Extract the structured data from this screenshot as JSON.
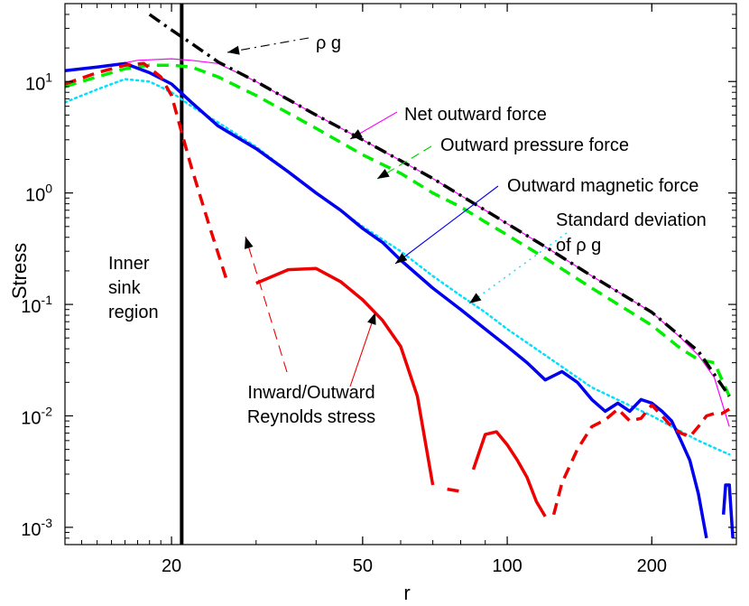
{
  "chart_data": {
    "type": "line",
    "xscale": "log",
    "yscale": "log",
    "xlabel": "r",
    "ylabel": "Stress",
    "xlim": [
      12,
      300
    ],
    "ylim": [
      0.0007,
      50
    ],
    "xticks": [
      {
        "value": 20,
        "label": "20"
      },
      {
        "value": 50,
        "label": "50"
      },
      {
        "value": 100,
        "label": "100"
      },
      {
        "value": 200,
        "label": "200"
      }
    ],
    "yticks": [
      {
        "value": 10,
        "base": "10",
        "exp": "1"
      },
      {
        "value": 1,
        "base": "10",
        "exp": "0"
      },
      {
        "value": 0.1,
        "base": "10",
        "exp": "-1"
      },
      {
        "value": 0.01,
        "base": "10",
        "exp": "-2"
      },
      {
        "value": 0.001,
        "base": "10",
        "exp": "-3"
      }
    ],
    "sink_boundary_r": 21,
    "series": [
      {
        "name": "rho g",
        "color": "#000000",
        "style": "dashdot",
        "width": 3.5,
        "x": [
          18,
          20,
          22,
          25,
          30,
          40,
          50,
          60,
          70,
          80,
          90,
          100,
          120,
          150,
          200,
          250,
          290
        ],
        "y": [
          40,
          29,
          22,
          15,
          10,
          5.0,
          3.0,
          1.95,
          1.35,
          0.95,
          0.7,
          0.53,
          0.33,
          0.18,
          0.085,
          0.038,
          0.015
        ]
      },
      {
        "name": "Net outward force",
        "color": "#ff00ff",
        "style": "solid",
        "width": 1.2,
        "x": [
          12,
          15,
          17,
          20,
          22,
          25,
          30,
          40,
          50,
          60,
          70,
          80,
          90,
          100,
          120,
          150,
          200,
          230,
          250,
          270,
          290
        ],
        "y": [
          12.5,
          14,
          15.5,
          16,
          15.5,
          14.5,
          10,
          5.0,
          3.0,
          1.95,
          1.35,
          0.95,
          0.7,
          0.53,
          0.33,
          0.18,
          0.085,
          0.05,
          0.035,
          0.022,
          0.008
        ]
      },
      {
        "name": "Outward pressure force",
        "color": "#00ee00",
        "style": "dashed",
        "width": 3.5,
        "x": [
          12,
          14,
          16,
          18,
          20,
          22,
          25,
          30,
          40,
          50,
          60,
          70,
          80,
          90,
          100,
          120,
          150,
          200,
          230,
          250,
          270,
          290
        ],
        "y": [
          9,
          11,
          13,
          14,
          14,
          13.5,
          11,
          7.5,
          3.8,
          2.2,
          1.5,
          1.0,
          0.75,
          0.55,
          0.42,
          0.26,
          0.14,
          0.065,
          0.04,
          0.032,
          0.03,
          0.015
        ]
      },
      {
        "name": "Outward magnetic force",
        "color": "#0000ee",
        "style": "solid",
        "width": 3.5,
        "x": [
          12,
          14,
          16,
          18,
          20,
          22,
          25,
          30,
          35,
          40,
          45,
          50,
          55,
          60,
          70,
          80,
          90,
          100,
          110,
          120,
          130,
          140,
          150,
          160,
          170,
          180,
          190,
          200,
          210,
          220,
          230,
          240,
          250,
          260
        ],
        "y": [
          12.5,
          13.5,
          14.5,
          12,
          9.5,
          6.5,
          4.0,
          2.5,
          1.55,
          1.0,
          0.7,
          0.48,
          0.36,
          0.25,
          0.14,
          0.09,
          0.06,
          0.042,
          0.03,
          0.021,
          0.025,
          0.02,
          0.014,
          0.011,
          0.013,
          0.011,
          0.014,
          0.013,
          0.011,
          0.009,
          0.006,
          0.004,
          0.002,
          0.0008
        ]
      },
      {
        "name": "Outward magnetic force (end)",
        "color": "#0000ee",
        "style": "solid",
        "width": 3.5,
        "x": [
          282,
          285,
          290,
          295
        ],
        "y": [
          0.0013,
          0.0024,
          0.0024,
          0.0008
        ]
      },
      {
        "name": "Standard deviation of rho g",
        "color": "#00e0ff",
        "style": "dotted",
        "width": 2.5,
        "x": [
          12,
          14,
          16,
          18,
          20,
          22,
          25,
          30,
          40,
          50,
          60,
          70,
          80,
          90,
          100,
          120,
          150,
          200,
          250,
          290
        ],
        "y": [
          6.5,
          8.5,
          10.5,
          10,
          8,
          6,
          4.3,
          2.6,
          1.0,
          0.5,
          0.3,
          0.18,
          0.12,
          0.085,
          0.06,
          0.035,
          0.018,
          0.01,
          0.006,
          0.0045
        ]
      },
      {
        "name": "Reynolds stress (inward)",
        "color": "#ee0000",
        "style": "dashed",
        "width": 3.5,
        "x": [
          12,
          14,
          16,
          17.5,
          19,
          20,
          21,
          22,
          24,
          26
        ],
        "y": [
          9.5,
          12,
          14,
          14.5,
          11,
          7.5,
          3.5,
          1.7,
          0.5,
          0.17
        ]
      },
      {
        "name": "Reynolds stress (outward, mid)",
        "color": "#ee0000",
        "style": "solid",
        "width": 3.5,
        "x": [
          30,
          35,
          40,
          45,
          50,
          55,
          60,
          65,
          70
        ],
        "y": [
          0.155,
          0.205,
          0.21,
          0.16,
          0.11,
          0.072,
          0.042,
          0.015,
          0.0024
        ]
      },
      {
        "name": "Reynolds stress (gap)",
        "color": "#ee0000",
        "style": "dashed",
        "width": 3.5,
        "x": [
          75,
          80
        ],
        "y": [
          0.0022,
          0.0021
        ]
      },
      {
        "name": "Reynolds stress (outward, late)",
        "color": "#ee0000",
        "style": "solid",
        "width": 3.5,
        "x": [
          85,
          90,
          95,
          100,
          105,
          110,
          115,
          120
        ],
        "y": [
          0.0033,
          0.0068,
          0.0072,
          0.0055,
          0.004,
          0.0028,
          0.0017,
          0.00125
        ]
      },
      {
        "name": "Reynolds stress (inward, late)",
        "color": "#ee0000",
        "style": "dashed",
        "width": 3.5,
        "x": [
          125,
          130,
          140,
          150,
          160,
          170,
          180,
          190,
          200,
          210,
          220,
          230,
          240,
          250,
          260,
          270,
          280,
          290
        ],
        "y": [
          0.0013,
          0.0025,
          0.005,
          0.008,
          0.0092,
          0.0115,
          0.009,
          0.0095,
          0.0125,
          0.01,
          0.008,
          0.007,
          0.0065,
          0.008,
          0.01,
          0.0105,
          0.0105,
          0.0115
        ]
      }
    ],
    "annotations": [
      {
        "lines": [
          "ρ g"
        ]
      },
      {
        "lines": [
          "Net outward force"
        ]
      },
      {
        "lines": [
          "Outward pressure force"
        ]
      },
      {
        "lines": [
          "Outward magnetic force"
        ]
      },
      {
        "lines": [
          "Standard deviation",
          "of ρ g"
        ]
      },
      {
        "lines": [
          "Inner",
          "sink",
          "region"
        ]
      },
      {
        "lines": [
          "Inward/Outward",
          "Reynolds stress"
        ]
      }
    ]
  }
}
